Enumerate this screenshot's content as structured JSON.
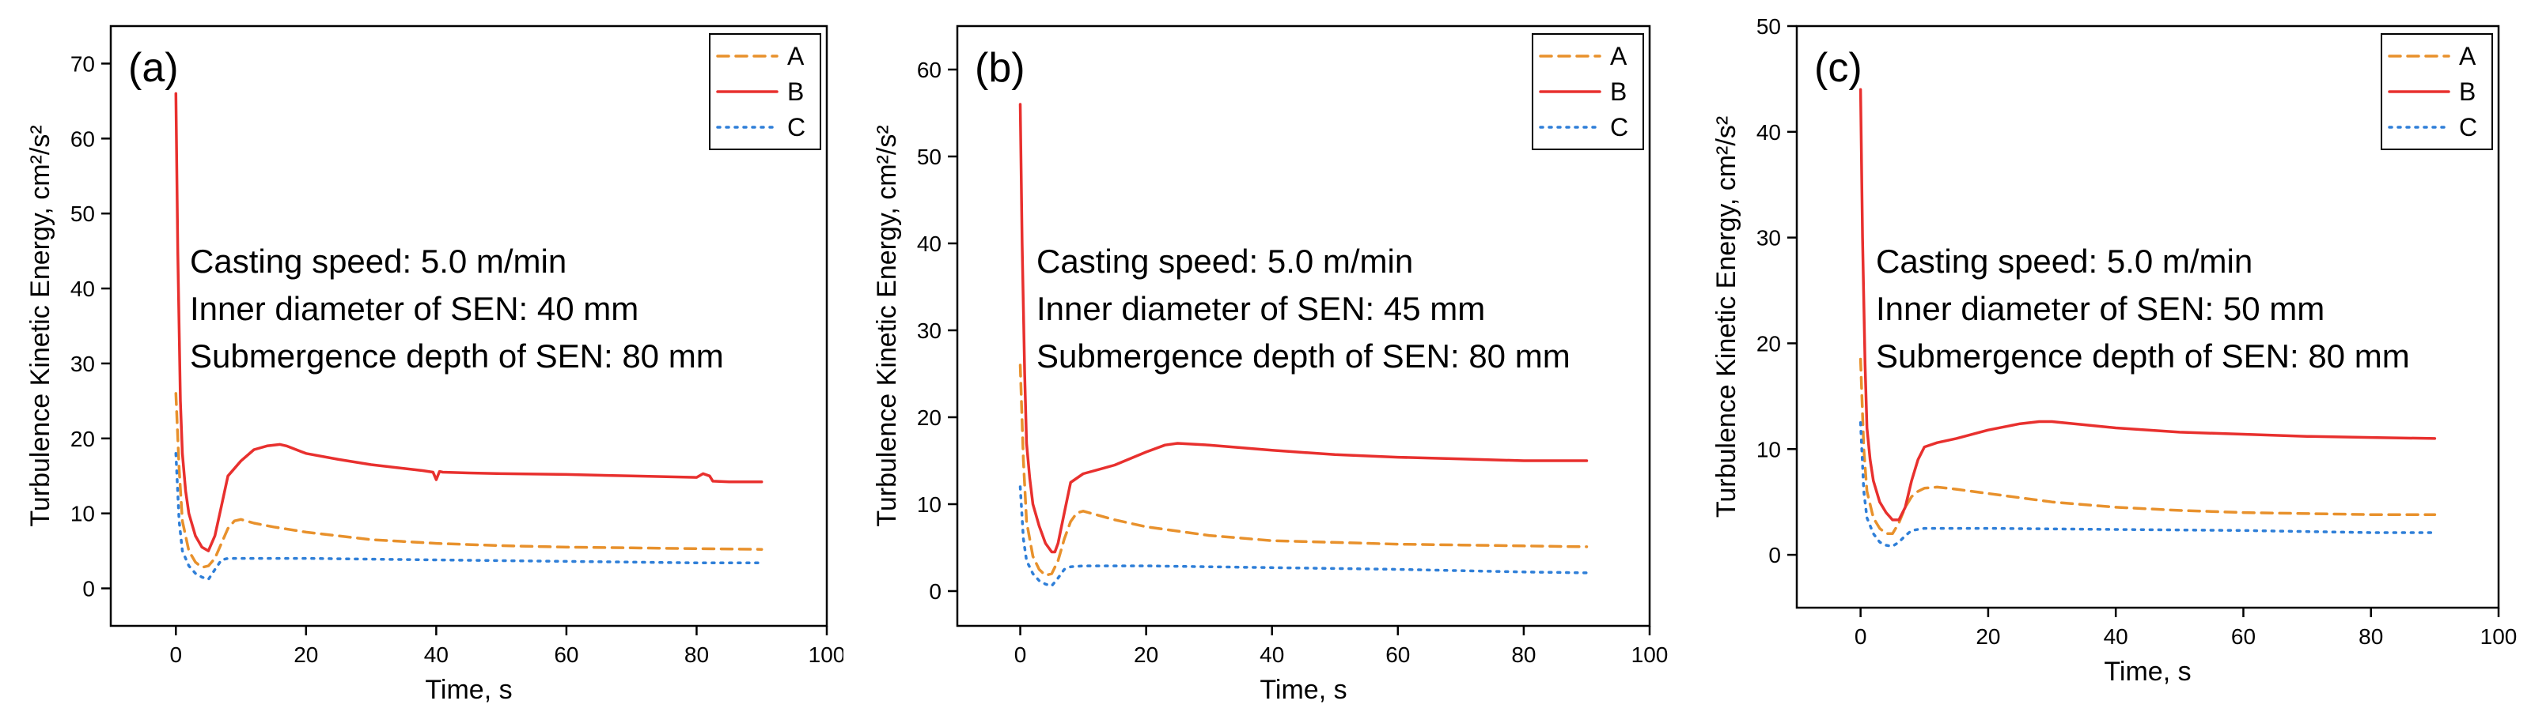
{
  "chart_data": [
    {
      "type": "line",
      "panel_label": "(a)",
      "xlabel": "Time, s",
      "ylabel": "Turbulence Kinetic Energy, cm²/s²",
      "xlim": [
        -10,
        100
      ],
      "ylim": [
        -5,
        75
      ],
      "xticks": [
        0,
        20,
        40,
        60,
        80,
        100
      ],
      "yticks": [
        0,
        10,
        20,
        30,
        40,
        50,
        60,
        70
      ],
      "annotations": [
        "Casting speed: 5.0 m/min",
        "Inner diameter of SEN: 40 mm",
        "Submergence depth of SEN: 80 mm"
      ],
      "legend": [
        "A",
        "B",
        "C"
      ],
      "series": [
        {
          "name": "A",
          "color": "#E8912C",
          "style": "dashed",
          "x": [
            0,
            0.5,
            1,
            2,
            3,
            4,
            5,
            6,
            7,
            8,
            9,
            10,
            12,
            15,
            20,
            30,
            40,
            50,
            60,
            70,
            80,
            90
          ],
          "y": [
            26,
            16,
            9,
            5,
            3.5,
            2.8,
            3,
            4,
            6,
            8,
            9,
            9.2,
            8.7,
            8.2,
            7.5,
            6.5,
            6,
            5.7,
            5.5,
            5.4,
            5.3,
            5.2
          ]
        },
        {
          "name": "B",
          "color": "#E8302E",
          "style": "solid",
          "x": [
            0,
            0.3,
            0.7,
            1,
            1.5,
            2,
            3,
            4,
            5,
            6,
            7,
            8,
            10,
            12,
            14,
            16,
            17,
            20,
            25,
            30,
            35,
            38,
            39.5,
            40,
            40.5,
            41,
            45,
            50,
            60,
            70,
            80,
            81,
            82,
            82.5,
            85,
            90
          ],
          "y": [
            66,
            45,
            25,
            18,
            13,
            10,
            7,
            5.5,
            5,
            7,
            11,
            15,
            17,
            18.5,
            19,
            19.2,
            19,
            18,
            17.2,
            16.5,
            16,
            15.7,
            15.5,
            14.5,
            15.6,
            15.5,
            15.4,
            15.3,
            15.2,
            15,
            14.8,
            15.3,
            15,
            14.3,
            14.2,
            14.2
          ]
        },
        {
          "name": "C",
          "color": "#2F7FD8",
          "style": "dotted",
          "x": [
            0,
            0.5,
            1,
            2,
            3,
            4,
            5,
            6,
            7,
            8,
            10,
            20,
            40,
            60,
            80,
            90
          ],
          "y": [
            18,
            9,
            5,
            3,
            2,
            1.5,
            1.2,
            2.5,
            3.8,
            4,
            4,
            4,
            3.8,
            3.6,
            3.4,
            3.4
          ]
        }
      ]
    },
    {
      "type": "line",
      "panel_label": "(b)",
      "xlabel": "Time, s",
      "ylabel": "Turbulence Kinetic Energy, cm²/s²",
      "xlim": [
        -10,
        100
      ],
      "ylim": [
        -4,
        65
      ],
      "xticks": [
        0,
        20,
        40,
        60,
        80,
        100
      ],
      "yticks": [
        0,
        10,
        20,
        30,
        40,
        50,
        60
      ],
      "annotations": [
        "Casting speed: 5.0 m/min",
        "Inner diameter of SEN: 45 mm",
        "Submergence depth of SEN: 80 mm"
      ],
      "legend": [
        "A",
        "B",
        "C"
      ],
      "series": [
        {
          "name": "A",
          "color": "#E8912C",
          "style": "dashed",
          "x": [
            0,
            0.5,
            1,
            2,
            3,
            4,
            5,
            6,
            7,
            8,
            9,
            10,
            12,
            15,
            20,
            30,
            40,
            50,
            60,
            70,
            80,
            90
          ],
          "y": [
            26,
            15,
            8,
            4,
            2.5,
            1.8,
            2,
            3.5,
            6,
            8,
            9,
            9.2,
            8.8,
            8.2,
            7.4,
            6.4,
            5.8,
            5.6,
            5.4,
            5.3,
            5.2,
            5.1
          ]
        },
        {
          "name": "B",
          "color": "#E8302E",
          "style": "solid",
          "x": [
            0,
            0.3,
            0.7,
            1,
            1.5,
            2,
            3,
            4,
            5,
            5.5,
            6,
            7,
            8,
            10,
            15,
            20,
            23,
            25,
            30,
            40,
            50,
            60,
            70,
            80,
            90
          ],
          "y": [
            56,
            40,
            25,
            17,
            13,
            10,
            7.5,
            5.5,
            4.5,
            4.5,
            5.5,
            9,
            12.5,
            13.5,
            14.5,
            16,
            16.8,
            17,
            16.8,
            16.2,
            15.7,
            15.4,
            15.2,
            15,
            15
          ]
        },
        {
          "name": "C",
          "color": "#2F7FD8",
          "style": "dotted",
          "x": [
            0,
            0.5,
            1,
            2,
            3,
            4,
            5,
            6,
            7,
            8,
            10,
            20,
            40,
            60,
            80,
            90
          ],
          "y": [
            12,
            6,
            3.5,
            2,
            1.2,
            0.8,
            0.6,
            1.5,
            2.5,
            2.8,
            2.9,
            2.9,
            2.7,
            2.5,
            2.2,
            2.1
          ]
        }
      ]
    },
    {
      "type": "line",
      "panel_label": "(c)",
      "xlabel": "Time, s",
      "ylabel": "Turbulence Kinetic Energy, cm²/s²",
      "xlim": [
        -10,
        100
      ],
      "ylim": [
        -5,
        50
      ],
      "xticks": [
        0,
        20,
        40,
        60,
        80,
        100
      ],
      "yticks": [
        0,
        10,
        20,
        30,
        40,
        50
      ],
      "annotations": [
        "Casting speed: 5.0 m/min",
        "Inner diameter of SEN: 50 mm",
        "Submergence depth of SEN: 80 mm"
      ],
      "legend": [
        "A",
        "B",
        "C"
      ],
      "series": [
        {
          "name": "A",
          "color": "#E8912C",
          "style": "dashed",
          "x": [
            0,
            0.5,
            1,
            2,
            3,
            4,
            5,
            6,
            7,
            8,
            9,
            10,
            12,
            15,
            20,
            30,
            40,
            50,
            60,
            70,
            80,
            90
          ],
          "y": [
            18.5,
            10,
            6,
            3.5,
            2.5,
            2,
            2,
            3,
            4.5,
            5.5,
            6,
            6.3,
            6.4,
            6.2,
            5.8,
            5,
            4.5,
            4.2,
            4,
            3.9,
            3.8,
            3.8
          ]
        },
        {
          "name": "B",
          "color": "#E8302E",
          "style": "solid",
          "x": [
            0,
            0.3,
            0.7,
            1,
            1.5,
            2,
            3,
            4,
            5,
            6,
            7,
            8,
            9,
            10,
            12,
            15,
            20,
            25,
            28,
            30,
            35,
            40,
            50,
            60,
            70,
            80,
            90
          ],
          "y": [
            44,
            30,
            18,
            12,
            9,
            7,
            5,
            4,
            3.3,
            3.3,
            4.5,
            7,
            9,
            10.2,
            10.6,
            11,
            11.8,
            12.4,
            12.6,
            12.6,
            12.3,
            12,
            11.6,
            11.4,
            11.2,
            11.1,
            11
          ]
        },
        {
          "name": "C",
          "color": "#2F7FD8",
          "style": "dotted",
          "x": [
            0,
            0.5,
            1,
            2,
            3,
            4,
            5,
            6,
            7,
            8,
            10,
            20,
            40,
            60,
            80,
            90
          ],
          "y": [
            12.5,
            6,
            3.5,
            2,
            1.2,
            0.9,
            0.8,
            1.2,
            1.8,
            2.3,
            2.5,
            2.5,
            2.4,
            2.3,
            2.1,
            2.1
          ]
        }
      ]
    }
  ]
}
